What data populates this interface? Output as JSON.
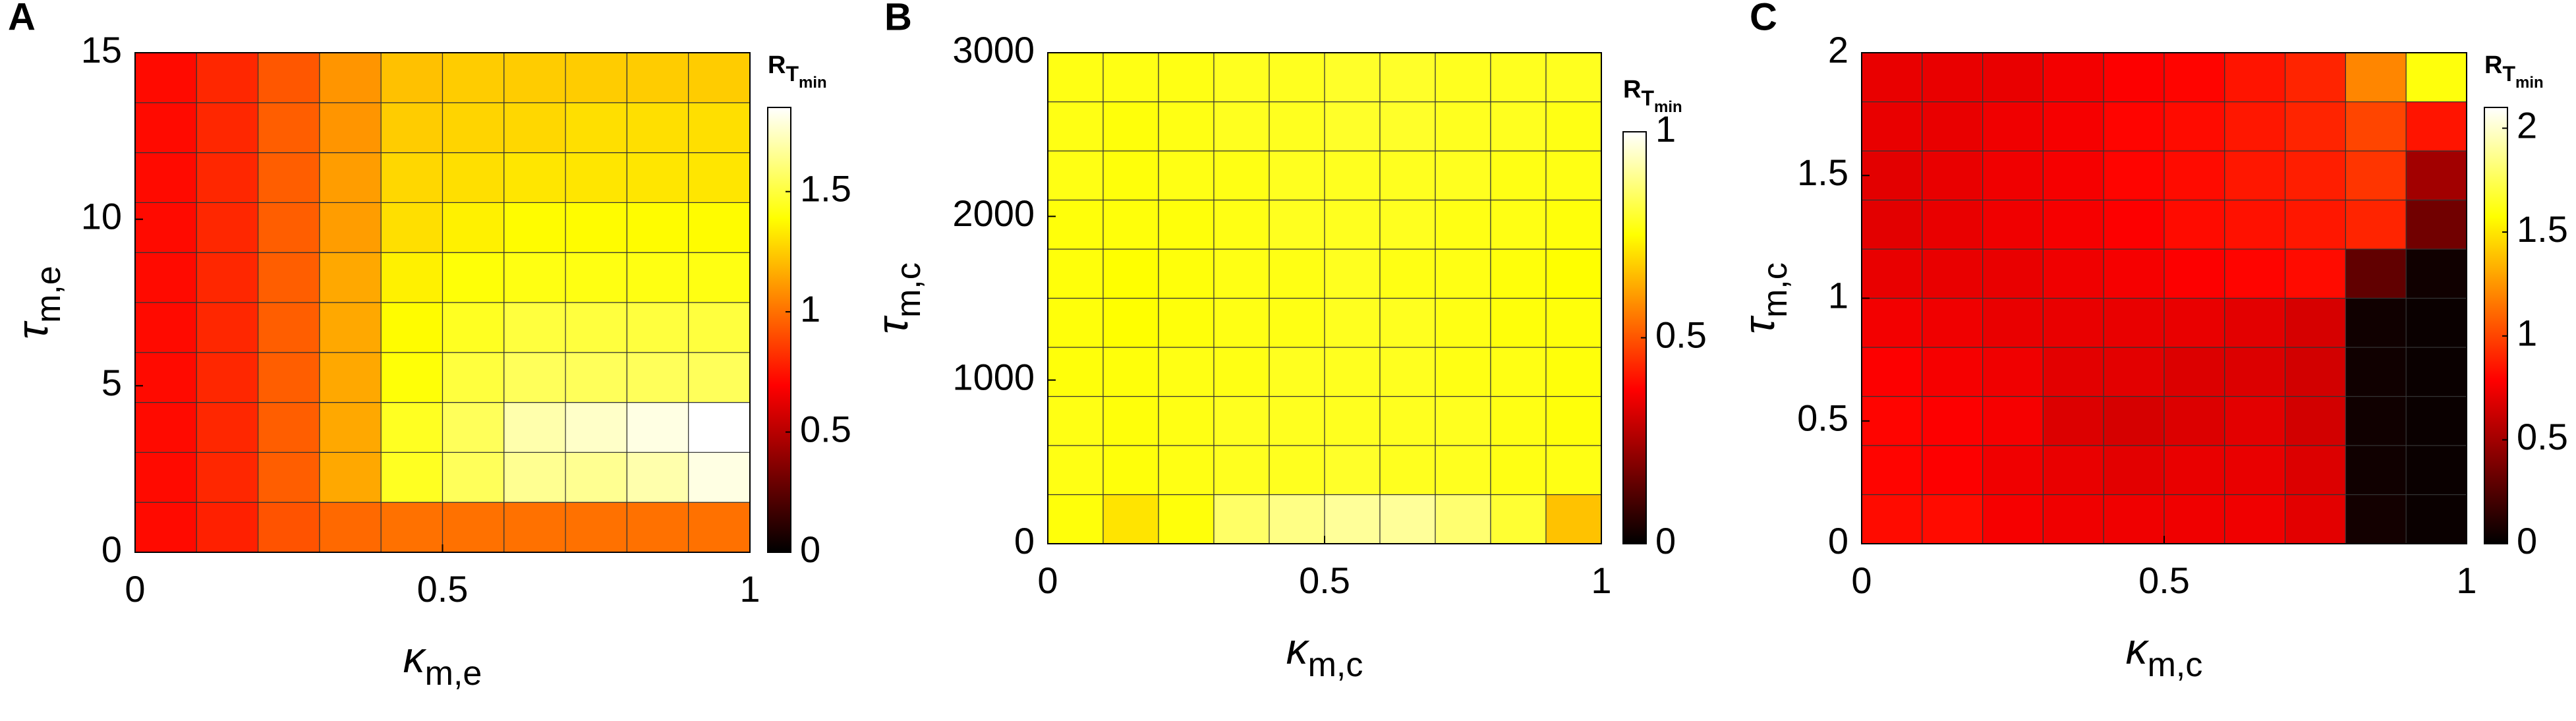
{
  "chart_data": [
    {
      "type": "heatmap",
      "panel": "A",
      "colormap": "hot",
      "xlabel": {
        "symbol": "κ",
        "sub": "m,e"
      },
      "ylabel": {
        "symbol": "τ",
        "sub": "m,e"
      },
      "colorbar_label": {
        "base": "R",
        "sub": "T",
        "subsub": "min"
      },
      "xlim": [
        0,
        1
      ],
      "xticks": [
        0,
        0.5,
        1
      ],
      "ylim": [
        0,
        15
      ],
      "yticks": [
        0,
        5,
        10,
        15
      ],
      "clim": [
        0,
        1.85
      ],
      "cticks": [
        0,
        0.5,
        1,
        1.5
      ],
      "z": [
        [
          0.72,
          0.78,
          0.92,
          0.98,
          1.0,
          1.0,
          1.0,
          1.0,
          1.0,
          1.0
        ],
        [
          0.72,
          0.8,
          0.95,
          1.15,
          1.45,
          1.55,
          1.65,
          1.65,
          1.7,
          1.8
        ],
        [
          0.72,
          0.8,
          0.95,
          1.15,
          1.45,
          1.55,
          1.7,
          1.75,
          1.8,
          1.85
        ],
        [
          0.72,
          0.8,
          0.95,
          1.15,
          1.4,
          1.5,
          1.55,
          1.55,
          1.55,
          1.55
        ],
        [
          0.72,
          0.8,
          0.95,
          1.15,
          1.38,
          1.45,
          1.5,
          1.5,
          1.5,
          1.5
        ],
        [
          0.72,
          0.8,
          0.95,
          1.15,
          1.35,
          1.4,
          1.42,
          1.42,
          1.42,
          1.42
        ],
        [
          0.72,
          0.8,
          0.95,
          1.12,
          1.3,
          1.35,
          1.38,
          1.38,
          1.38,
          1.38
        ],
        [
          0.72,
          0.8,
          0.95,
          1.12,
          1.28,
          1.3,
          1.32,
          1.32,
          1.32,
          1.32
        ],
        [
          0.72,
          0.8,
          0.95,
          1.1,
          1.25,
          1.27,
          1.28,
          1.3,
          1.3,
          1.3
        ],
        [
          0.72,
          0.8,
          0.93,
          1.1,
          1.22,
          1.25,
          1.25,
          1.25,
          1.25,
          1.25
        ]
      ]
    },
    {
      "type": "heatmap",
      "panel": "B",
      "colormap": "hot",
      "xlabel": {
        "symbol": "κ",
        "sub": "m,c"
      },
      "ylabel": {
        "symbol": "τ",
        "sub": "m,c"
      },
      "colorbar_label": {
        "base": "R",
        "sub": "T",
        "subsub": "min"
      },
      "xlim": [
        0,
        1
      ],
      "xticks": [
        0,
        0.5,
        1
      ],
      "ylim": [
        0,
        3000
      ],
      "yticks": [
        0,
        1000,
        2000,
        3000
      ],
      "clim": [
        0,
        1
      ],
      "cticks": [
        0,
        0.5,
        1
      ],
      "z": [
        [
          0.76,
          0.71,
          0.76,
          0.85,
          0.88,
          0.9,
          0.9,
          0.86,
          0.8,
          0.66
        ],
        [
          0.77,
          0.76,
          0.77,
          0.78,
          0.78,
          0.79,
          0.78,
          0.78,
          0.77,
          0.77
        ],
        [
          0.77,
          0.76,
          0.77,
          0.78,
          0.78,
          0.78,
          0.78,
          0.78,
          0.77,
          0.76
        ],
        [
          0.76,
          0.76,
          0.77,
          0.77,
          0.78,
          0.78,
          0.78,
          0.77,
          0.77,
          0.76
        ],
        [
          0.76,
          0.75,
          0.76,
          0.77,
          0.77,
          0.78,
          0.78,
          0.77,
          0.76,
          0.76
        ],
        [
          0.76,
          0.75,
          0.76,
          0.77,
          0.77,
          0.78,
          0.77,
          0.77,
          0.76,
          0.75
        ],
        [
          0.76,
          0.76,
          0.76,
          0.77,
          0.78,
          0.78,
          0.78,
          0.77,
          0.77,
          0.76
        ],
        [
          0.77,
          0.76,
          0.77,
          0.77,
          0.78,
          0.78,
          0.78,
          0.78,
          0.77,
          0.77
        ],
        [
          0.77,
          0.76,
          0.77,
          0.78,
          0.78,
          0.79,
          0.79,
          0.78,
          0.78,
          0.77
        ],
        [
          0.77,
          0.77,
          0.77,
          0.78,
          0.78,
          0.79,
          0.79,
          0.78,
          0.78,
          0.78
        ]
      ]
    },
    {
      "type": "heatmap",
      "panel": "C",
      "colormap": "hot",
      "xlabel": {
        "symbol": "κ",
        "sub": "m,c"
      },
      "ylabel": {
        "symbol": "τ",
        "sub": "m,c"
      },
      "colorbar_label": {
        "base": "R",
        "sub": "T",
        "subsub": "min"
      },
      "xlim": [
        0,
        1
      ],
      "xticks": [
        0,
        0.5,
        1
      ],
      "ylim": [
        0,
        2
      ],
      "yticks": [
        0,
        0.5,
        1,
        1.5,
        2
      ],
      "clim": [
        0,
        2.1
      ],
      "cticks": [
        0,
        0.5,
        1,
        1.5,
        2
      ],
      "z": [
        [
          0.82,
          0.82,
          0.76,
          0.74,
          0.74,
          0.74,
          0.74,
          0.7,
          0.06,
          0.03
        ],
        [
          0.8,
          0.78,
          0.74,
          0.72,
          0.7,
          0.72,
          0.72,
          0.68,
          0.05,
          0.03
        ],
        [
          0.8,
          0.78,
          0.76,
          0.68,
          0.66,
          0.68,
          0.7,
          0.65,
          0.05,
          0.03
        ],
        [
          0.78,
          0.76,
          0.74,
          0.7,
          0.7,
          0.68,
          0.68,
          0.65,
          0.05,
          0.03
        ],
        [
          0.75,
          0.74,
          0.72,
          0.72,
          0.72,
          0.72,
          0.7,
          0.66,
          0.05,
          0.03
        ],
        [
          0.72,
          0.72,
          0.72,
          0.74,
          0.76,
          0.78,
          0.8,
          0.82,
          0.3,
          0.05
        ],
        [
          0.7,
          0.72,
          0.74,
          0.76,
          0.78,
          0.82,
          0.84,
          0.86,
          0.9,
          0.35
        ],
        [
          0.7,
          0.72,
          0.74,
          0.76,
          0.8,
          0.82,
          0.86,
          0.88,
          0.95,
          0.5
        ],
        [
          0.72,
          0.72,
          0.74,
          0.76,
          0.8,
          0.82,
          0.86,
          0.9,
          1.0,
          0.85
        ],
        [
          0.72,
          0.72,
          0.72,
          0.75,
          0.78,
          0.8,
          0.85,
          0.9,
          1.2,
          1.6
        ]
      ]
    }
  ]
}
